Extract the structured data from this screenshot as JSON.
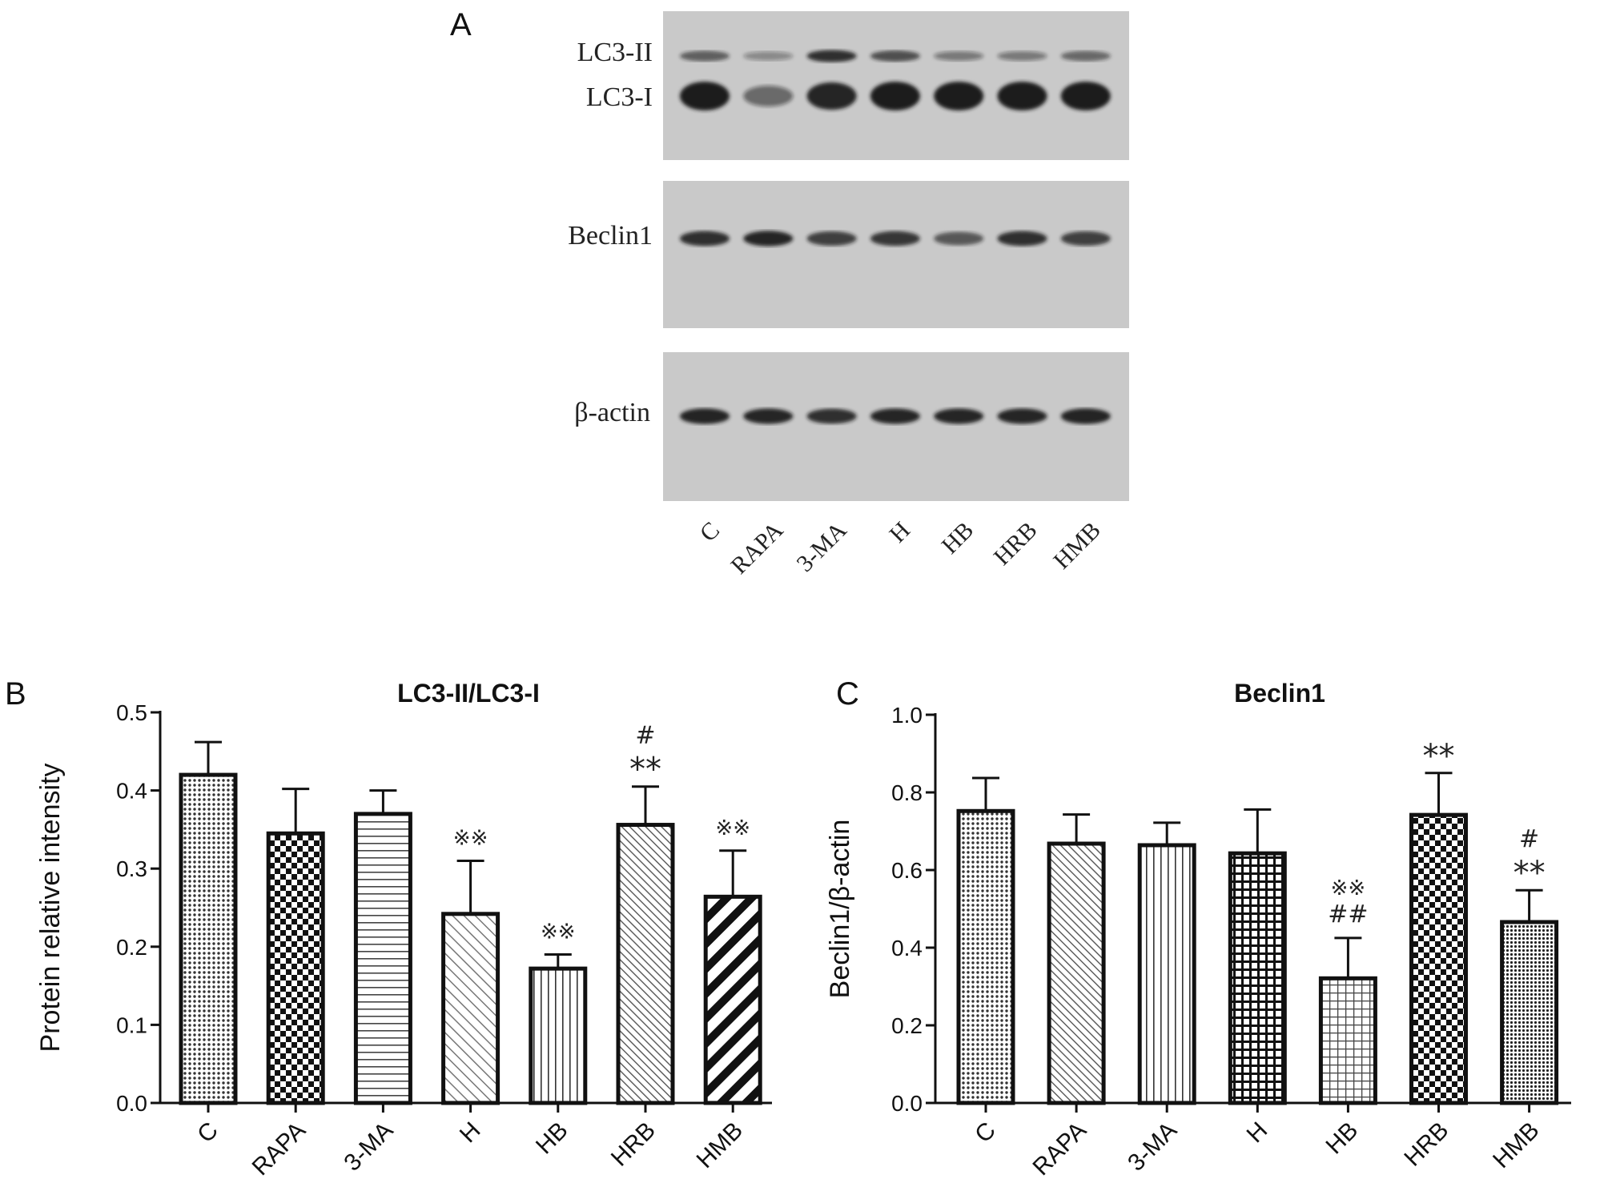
{
  "panels": {
    "a": "A",
    "b": "B",
    "c": "C"
  },
  "blot": {
    "rows": [
      {
        "labels": [
          "LC3-II",
          "LC3-I"
        ],
        "bands": [
          [
            0.55,
            0.25,
            0.85,
            0.65,
            0.35,
            0.35,
            0.5
          ],
          [
            1.0,
            0.45,
            0.9,
            1.0,
            1.0,
            1.0,
            1.0
          ]
        ]
      },
      {
        "labels": [
          "Beclin1"
        ],
        "bands": [
          [
            0.85,
            0.9,
            0.75,
            0.8,
            0.6,
            0.85,
            0.75
          ]
        ]
      },
      {
        "labels": [
          "β-actin"
        ],
        "bands": [
          [
            0.95,
            0.9,
            0.85,
            0.9,
            0.9,
            0.9,
            0.95
          ]
        ]
      }
    ],
    "lanes": [
      "C",
      "RAPA",
      "3-MA",
      "H",
      "HB",
      "HRB",
      "HMB"
    ],
    "colors": {
      "membrane": "#c9c9c9",
      "band": "#1a1a1a"
    }
  },
  "chart_data": [
    {
      "type": "bar",
      "title": "LC3-II/LC3-I",
      "ylabel": "Protein relative intensity",
      "xlabel": "",
      "ylim": [
        0,
        0.5
      ],
      "yticks": [
        "0.0",
        "0.1",
        "0.2",
        "0.3",
        "0.4",
        "0.5"
      ],
      "categories": [
        "C",
        "RAPA",
        "3-MA",
        "H",
        "HB",
        "HRB",
        "HMB"
      ],
      "values": [
        0.42,
        0.345,
        0.37,
        0.242,
        0.172,
        0.356,
        0.264
      ],
      "errors": [
        0.042,
        0.057,
        0.03,
        0.068,
        0.018,
        0.049,
        0.059
      ],
      "patterns": [
        "dots",
        "checker",
        "hlines",
        "diag-light",
        "vlines",
        "diag-fine",
        "diag-bold"
      ],
      "annotations": [
        {
          "category": "H",
          "lines": [
            "※※"
          ],
          "color": "#aaaaaa"
        },
        {
          "category": "HB",
          "lines": [
            "※※"
          ],
          "color": "#aaaaaa"
        },
        {
          "category": "HRB",
          "lines": [
            "#",
            "**"
          ],
          "color": "#222222"
        },
        {
          "category": "HMB",
          "lines": [
            "※※"
          ],
          "color": "#aaaaaa"
        }
      ]
    },
    {
      "type": "bar",
      "title": "Beclin1",
      "ylabel": "Beclin1/β-actin",
      "xlabel": "",
      "ylim": [
        0,
        1.0
      ],
      "yticks": [
        "0.0",
        "0.2",
        "0.4",
        "0.6",
        "0.8",
        "1.0"
      ],
      "categories": [
        "C",
        "RAPA",
        "3-MA",
        "H",
        "HB",
        "HRB",
        "HMB"
      ],
      "values": [
        0.752,
        0.668,
        0.664,
        0.643,
        0.321,
        0.742,
        0.466
      ],
      "errors": [
        0.085,
        0.075,
        0.058,
        0.113,
        0.104,
        0.108,
        0.082
      ],
      "patterns": [
        "dots",
        "diag-fine",
        "vlines",
        "grid-bold",
        "grid-light",
        "checker",
        "dots-dense"
      ],
      "annotations": [
        {
          "category": "HB",
          "lines": [
            "※※",
            "##"
          ],
          "color": "#555555"
        },
        {
          "category": "HRB",
          "lines": [
            "**"
          ],
          "color": "#222222"
        },
        {
          "category": "HMB",
          "lines": [
            "#",
            "**"
          ],
          "color": "#222222"
        }
      ]
    }
  ]
}
